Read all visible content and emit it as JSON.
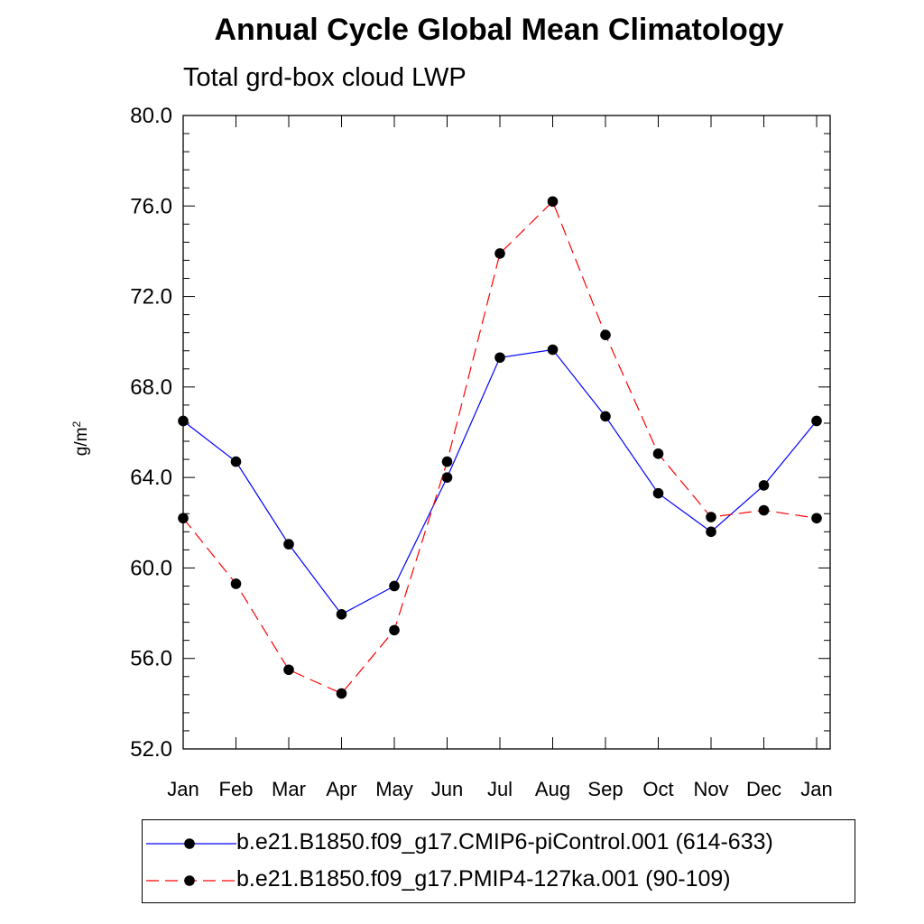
{
  "chart_data": {
    "type": "line",
    "title": "Annual Cycle Global Mean Climatology",
    "subtitle": "Total grd-box cloud LWP",
    "ylabel": "g/m",
    "ylabel_superscript": "2",
    "ylim": [
      52.0,
      80.0
    ],
    "yticks": [
      "52.0",
      "56.0",
      "60.0",
      "64.0",
      "68.0",
      "72.0",
      "76.0",
      "80.0"
    ],
    "categories": [
      "Jan",
      "Feb",
      "Mar",
      "Apr",
      "May",
      "Jun",
      "Jul",
      "Aug",
      "Sep",
      "Oct",
      "Nov",
      "Dec",
      "Jan"
    ],
    "series": [
      {
        "name": "b.e21.B1850.f09_g17.CMIP6-piControl.001 (614-633)",
        "color": "#0000ff",
        "style": "solid",
        "values": [
          66.5,
          64.7,
          61.05,
          57.95,
          59.2,
          64.0,
          69.3,
          69.65,
          66.7,
          63.3,
          61.6,
          63.65,
          66.5
        ]
      },
      {
        "name": "b.e21.B1850.f09_g17.PMIP4-127ka.001 (90-109)",
        "color": "#ff0000",
        "style": "dashed",
        "values": [
          62.2,
          59.3,
          55.5,
          54.45,
          57.25,
          64.7,
          73.9,
          76.2,
          70.3,
          65.05,
          62.25,
          62.55,
          62.2
        ]
      }
    ]
  }
}
